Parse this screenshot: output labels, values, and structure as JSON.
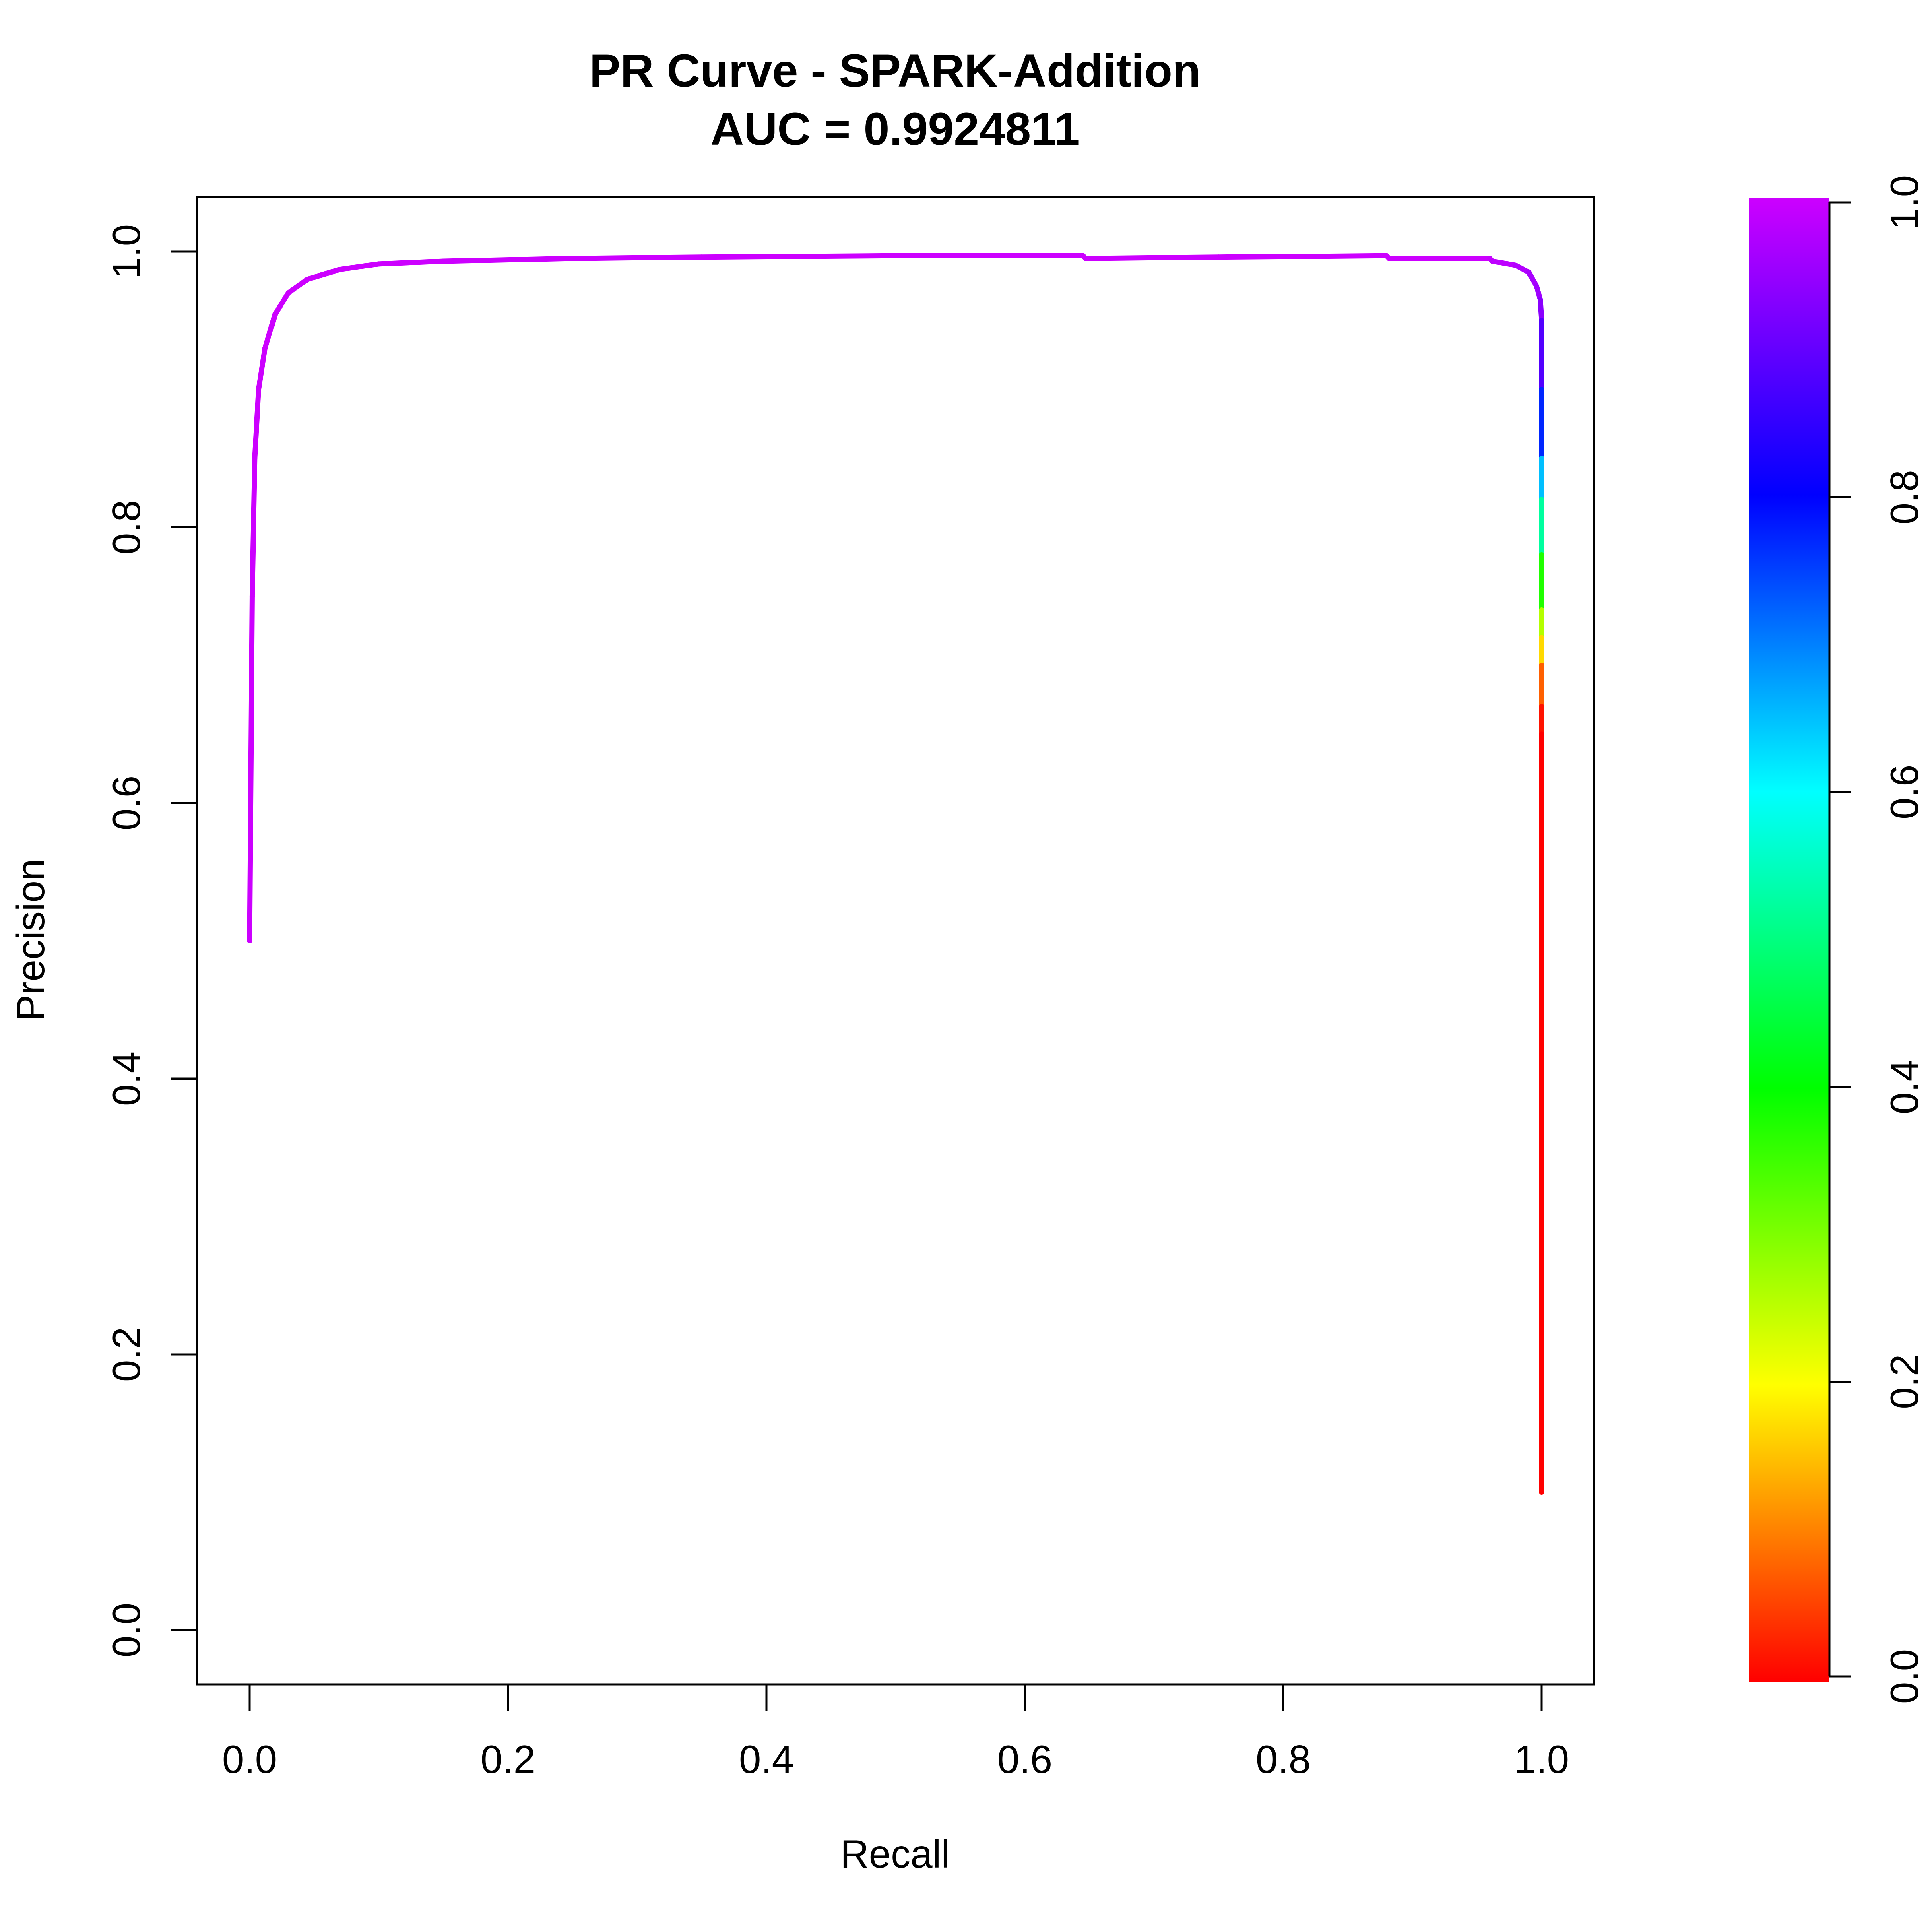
{
  "chart_data": {
    "type": "line",
    "title": "PR Curve - SPARK-Addition",
    "subtitle": "AUC = 0.9924811",
    "xlabel": "Recall",
    "ylabel": "Precision",
    "xlim": [
      0,
      1
    ],
    "ylim": [
      0,
      1
    ],
    "x_ticks": [
      "0.0",
      "0.2",
      "0.4",
      "0.6",
      "0.8",
      "1.0"
    ],
    "y_ticks": [
      "0.0",
      "0.2",
      "0.4",
      "0.6",
      "0.8",
      "1.0"
    ],
    "grid": false,
    "series": [
      {
        "color_by": "score",
        "points": [
          {
            "x": 0.0,
            "y": 0.5,
            "s": 1.0
          },
          {
            "x": 0.0008,
            "y": 0.6,
            "s": 1.0
          },
          {
            "x": 0.002,
            "y": 0.75,
            "s": 1.0
          },
          {
            "x": 0.004,
            "y": 0.85,
            "s": 1.0
          },
          {
            "x": 0.007,
            "y": 0.9,
            "s": 1.0
          },
          {
            "x": 0.012,
            "y": 0.93,
            "s": 1.0
          },
          {
            "x": 0.02,
            "y": 0.955,
            "s": 1.0
          },
          {
            "x": 0.03,
            "y": 0.97,
            "s": 1.0
          },
          {
            "x": 0.045,
            "y": 0.98,
            "s": 1.0
          },
          {
            "x": 0.07,
            "y": 0.987,
            "s": 1.0
          },
          {
            "x": 0.1,
            "y": 0.991,
            "s": 1.0
          },
          {
            "x": 0.15,
            "y": 0.993,
            "s": 1.0
          },
          {
            "x": 0.25,
            "y": 0.995,
            "s": 1.0
          },
          {
            "x": 0.35,
            "y": 0.996,
            "s": 1.0
          },
          {
            "x": 0.5,
            "y": 0.997,
            "s": 1.0
          },
          {
            "x": 0.645,
            "y": 0.997,
            "s": 1.0
          },
          {
            "x": 0.647,
            "y": 0.995,
            "s": 1.0
          },
          {
            "x": 0.75,
            "y": 0.996,
            "s": 1.0
          },
          {
            "x": 0.88,
            "y": 0.997,
            "s": 1.0
          },
          {
            "x": 0.882,
            "y": 0.995,
            "s": 1.0
          },
          {
            "x": 0.96,
            "y": 0.995,
            "s": 1.0
          },
          {
            "x": 0.962,
            "y": 0.993,
            "s": 0.99
          },
          {
            "x": 0.98,
            "y": 0.99,
            "s": 0.98
          },
          {
            "x": 0.99,
            "y": 0.985,
            "s": 0.97
          },
          {
            "x": 0.996,
            "y": 0.975,
            "s": 0.96
          },
          {
            "x": 0.999,
            "y": 0.965,
            "s": 0.95
          },
          {
            "x": 1.0,
            "y": 0.95,
            "s": 0.92
          },
          {
            "x": 1.0,
            "y": 0.9,
            "s": 0.84
          },
          {
            "x": 1.0,
            "y": 0.85,
            "s": 0.7
          },
          {
            "x": 1.0,
            "y": 0.82,
            "s": 0.6
          },
          {
            "x": 1.0,
            "y": 0.78,
            "s": 0.45
          },
          {
            "x": 1.0,
            "y": 0.74,
            "s": 0.3
          },
          {
            "x": 1.0,
            "y": 0.72,
            "s": 0.22
          },
          {
            "x": 1.0,
            "y": 0.7,
            "s": 0.12
          },
          {
            "x": 1.0,
            "y": 0.67,
            "s": 0.03
          },
          {
            "x": 1.0,
            "y": 0.65,
            "s": 0.0
          },
          {
            "x": 1.0,
            "y": 0.1,
            "s": 0.0
          }
        ]
      }
    ],
    "colorbar": {
      "range": [
        0,
        1
      ],
      "ticks": [
        "0.0",
        "0.2",
        "0.4",
        "0.6",
        "0.8",
        "1.0"
      ],
      "colormap": [
        "#ff0000",
        "#ffff00",
        "#00ff00",
        "#00ffff",
        "#0000ff",
        "#cc00ff"
      ]
    }
  }
}
